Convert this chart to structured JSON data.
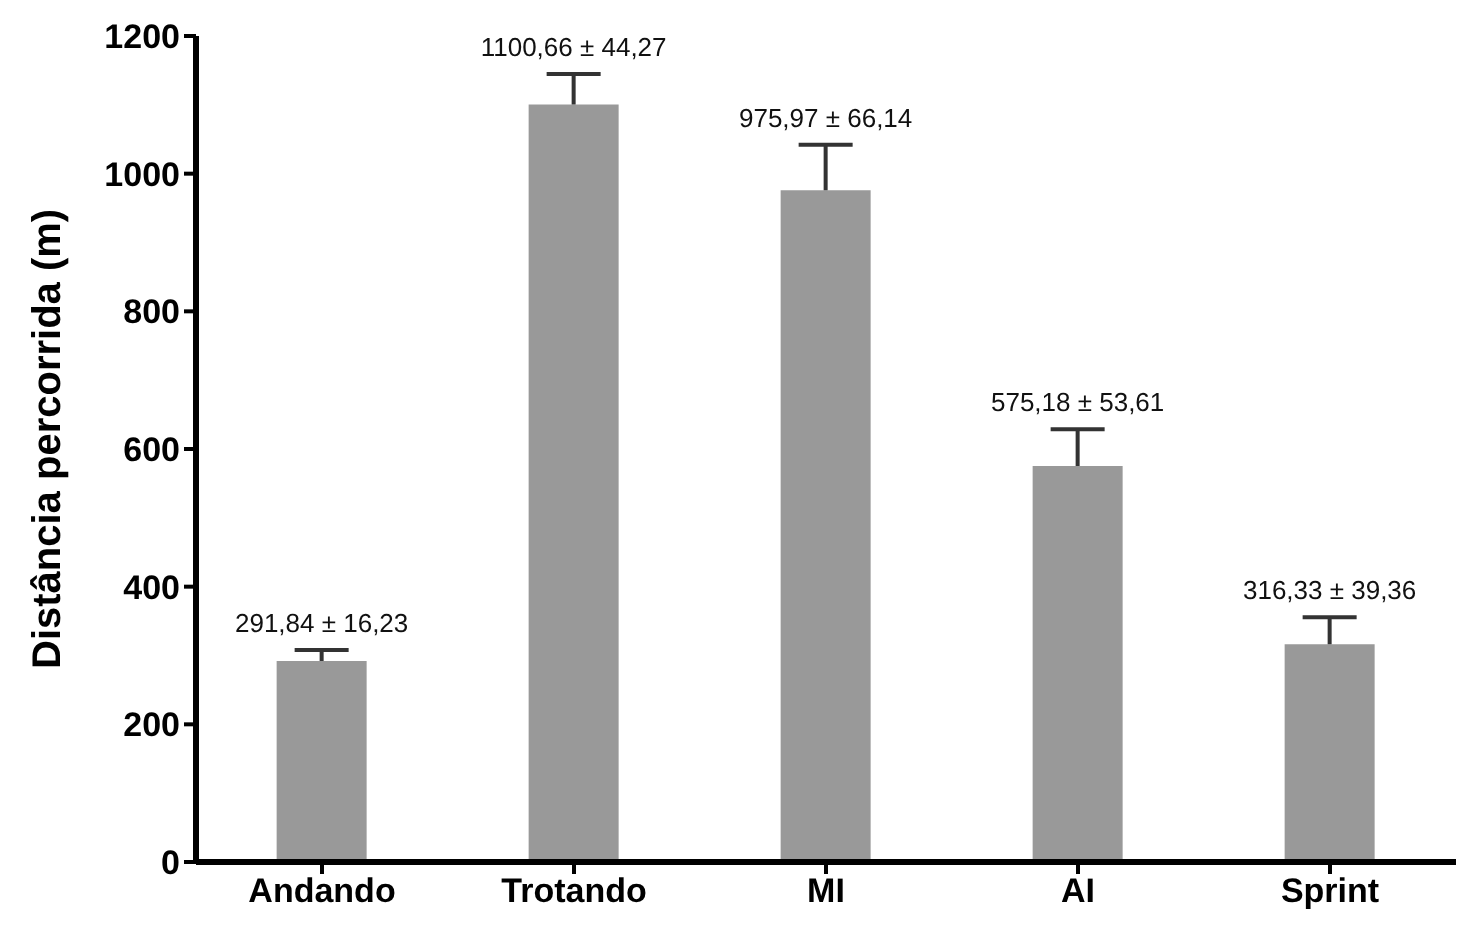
{
  "chart_data": {
    "type": "bar",
    "ylabel": "Distância percorrida (m)",
    "categories": [
      "Andando",
      "Trotando",
      "MI",
      "AI",
      "Sprint"
    ],
    "values": [
      291.84,
      1100.66,
      975.97,
      575.18,
      316.33
    ],
    "errors": [
      16.23,
      44.27,
      66.14,
      53.61,
      39.36
    ],
    "value_labels": [
      "291,84 ± 16,23",
      "1100,66 ± 44,27",
      "975,97 ± 66,14",
      "575,18 ± 53,61",
      "316,33 ± 39,36"
    ],
    "color": "#999999",
    "ylim": [
      0,
      1200
    ],
    "yticks": [
      0,
      200,
      400,
      600,
      800,
      1000,
      1200
    ],
    "grid": false
  }
}
